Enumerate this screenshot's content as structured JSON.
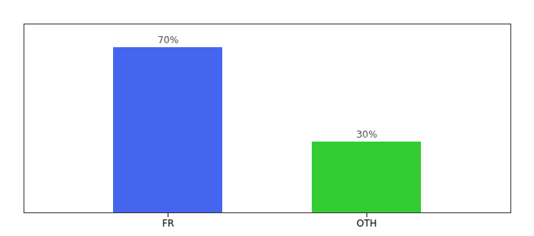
{
  "chart_data": {
    "type": "bar",
    "categories": [
      "FR",
      "OTH"
    ],
    "values": [
      70,
      30
    ],
    "value_labels": [
      "70%",
      "30%"
    ],
    "colors": [
      "#4466ee",
      "#33cc33"
    ],
    "ylim": [
      0,
      80
    ],
    "data_labels": true,
    "tick_labels": "x"
  }
}
